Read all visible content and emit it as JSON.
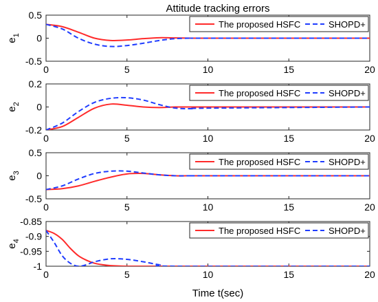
{
  "figure": {
    "title": "Attitude tracking errors",
    "xlabel": "Time t(sec)"
  },
  "colors": {
    "hsfc": "#ff2a2a",
    "shopd": "#1f3cff",
    "axis": "#222222",
    "legend_border": "#222222"
  },
  "legend": {
    "hsfc": "The proposed HSFC",
    "shopd": "SHOPD+"
  },
  "chart_data": [
    {
      "type": "line",
      "ylabel": "e",
      "ylabel_sub": "1",
      "xlim": [
        0,
        20
      ],
      "ylim": [
        -0.5,
        0.5
      ],
      "xticks": [
        0,
        5,
        10,
        15,
        20
      ],
      "yticks": [
        0.5,
        0,
        -0.5
      ],
      "ytick_labels": [
        "0.5",
        "0",
        "-0.5"
      ],
      "legend_position": "top-right",
      "grid": false,
      "series": [
        {
          "name": "The proposed HSFC",
          "style": "solid",
          "x": [
            0,
            1,
            2,
            3,
            4,
            5,
            6,
            7,
            8,
            9,
            10,
            20
          ],
          "y": [
            0.3,
            0.25,
            0.13,
            0.0,
            -0.05,
            -0.04,
            -0.01,
            0.01,
            0.005,
            0.0,
            0.0,
            0.0
          ]
        },
        {
          "name": "SHOPD+",
          "style": "dashed",
          "x": [
            0,
            1,
            2,
            3,
            4,
            5,
            6,
            7,
            8,
            9,
            10,
            20
          ],
          "y": [
            0.3,
            0.2,
            0.0,
            -0.13,
            -0.18,
            -0.16,
            -0.11,
            -0.05,
            -0.01,
            0.0,
            0.0,
            0.0
          ]
        }
      ]
    },
    {
      "type": "line",
      "ylabel": "e",
      "ylabel_sub": "2",
      "xlim": [
        0,
        20
      ],
      "ylim": [
        -0.2,
        0.2
      ],
      "xticks": [
        0,
        5,
        10,
        15,
        20
      ],
      "yticks": [
        0.2,
        0,
        -0.2
      ],
      "ytick_labels": [
        "0.2",
        "0",
        "-0.2"
      ],
      "legend_position": "top-right",
      "grid": false,
      "series": [
        {
          "name": "The proposed HSFC",
          "style": "solid",
          "x": [
            0,
            1,
            2,
            3,
            4,
            5,
            6,
            7,
            8,
            9,
            10,
            20
          ],
          "y": [
            -0.2,
            -0.17,
            -0.09,
            -0.01,
            0.025,
            0.015,
            0.0,
            -0.005,
            0.0,
            0.0,
            0.0,
            0.0
          ]
        },
        {
          "name": "SHOPD+",
          "style": "dashed",
          "x": [
            0,
            1,
            2,
            3,
            4,
            5,
            6,
            7,
            8,
            9,
            10,
            20
          ],
          "y": [
            -0.2,
            -0.14,
            -0.04,
            0.04,
            0.075,
            0.08,
            0.06,
            0.02,
            -0.01,
            -0.015,
            -0.01,
            0.0
          ]
        }
      ]
    },
    {
      "type": "line",
      "ylabel": "e",
      "ylabel_sub": "3",
      "xlim": [
        0,
        20
      ],
      "ylim": [
        -0.5,
        0.5
      ],
      "xticks": [
        0,
        5,
        10,
        15,
        20
      ],
      "yticks": [
        0.5,
        0,
        -0.5
      ],
      "ytick_labels": [
        "0.5",
        "0",
        "-0.5"
      ],
      "legend_position": "top-right",
      "grid": false,
      "series": [
        {
          "name": "The proposed HSFC",
          "style": "solid",
          "x": [
            0,
            1,
            2,
            3,
            4,
            5,
            6,
            7,
            8,
            9,
            10,
            20
          ],
          "y": [
            -0.3,
            -0.28,
            -0.22,
            -0.12,
            -0.03,
            0.04,
            0.05,
            0.02,
            0.0,
            0.0,
            0.0,
            0.0
          ]
        },
        {
          "name": "SHOPD+",
          "style": "dashed",
          "x": [
            0,
            1,
            2,
            3,
            4,
            5,
            6,
            7,
            8,
            9,
            10,
            20
          ],
          "y": [
            -0.3,
            -0.22,
            -0.07,
            0.05,
            0.1,
            0.1,
            0.06,
            0.02,
            0.0,
            0.0,
            0.0,
            0.0
          ]
        }
      ]
    },
    {
      "type": "line",
      "ylabel": "e",
      "ylabel_sub": "4",
      "xlim": [
        0,
        20
      ],
      "ylim": [
        -1.0,
        -0.85
      ],
      "xticks": [
        0,
        5,
        10,
        15,
        20
      ],
      "yticks": [
        -0.85,
        -0.9,
        -0.95,
        -1.0
      ],
      "ytick_labels": [
        "-0.85",
        "-0.9",
        "-0.95",
        "-1"
      ],
      "legend_position": "top-right",
      "grid": false,
      "series": [
        {
          "name": "The proposed HSFC",
          "style": "solid",
          "x": [
            0,
            0.5,
            1,
            1.5,
            2,
            2.5,
            3,
            3.5,
            4,
            5,
            6,
            20
          ],
          "y": [
            -0.88,
            -0.89,
            -0.91,
            -0.94,
            -0.965,
            -0.98,
            -0.99,
            -0.995,
            -0.998,
            -1.0,
            -1.0,
            -1.0
          ]
        },
        {
          "name": "SHOPD+",
          "style": "dashed",
          "x": [
            0,
            0.5,
            1,
            1.5,
            2,
            2.5,
            3,
            4,
            5,
            6,
            7,
            8,
            20
          ],
          "y": [
            -0.88,
            -0.92,
            -0.965,
            -0.99,
            -1.0,
            -0.995,
            -0.985,
            -0.975,
            -0.977,
            -0.985,
            -0.995,
            -1.0,
            -1.0
          ]
        }
      ]
    }
  ]
}
